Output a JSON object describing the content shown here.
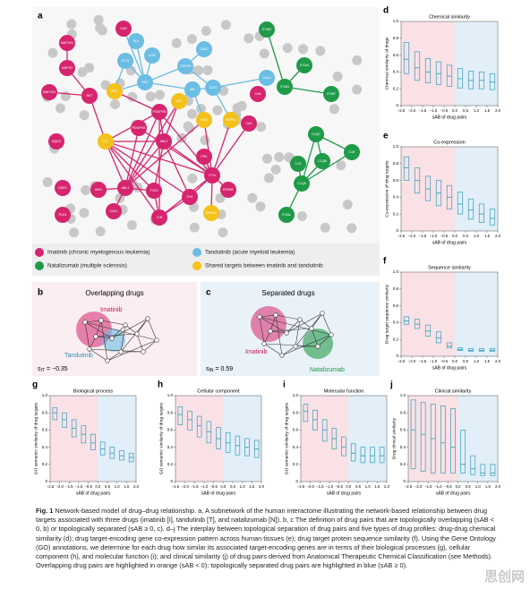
{
  "figure": {
    "panel_a": {
      "letter": "a",
      "groups": {
        "imatinib": {
          "label": "Imatinib (chronic myelogenous leukemia)",
          "color": "#d6246e"
        },
        "tandutinib": {
          "label": "Tandutinib (acute myeloid leukemia)",
          "color": "#6bbde3"
        },
        "natalizumab": {
          "label": "Natalizumab (multiple sclerosis)",
          "color": "#1f9a48"
        },
        "shared": {
          "label": "Shared targets between imatinib and tandutinib",
          "color": "#f4c21a"
        }
      },
      "nodes": [
        {
          "label": "CAR",
          "group": "imatinib"
        },
        {
          "label": "SLK",
          "group": "tandutinib"
        },
        {
          "label": "MAP2K1",
          "group": "imatinib"
        },
        {
          "label": "MAPK3",
          "group": "imatinib"
        },
        {
          "label": "MAP2K2",
          "group": "imatinib"
        },
        {
          "label": "BET",
          "group": "imatinib"
        },
        {
          "label": "FLT3",
          "group": "tandutinib"
        },
        {
          "label": "KDR",
          "group": "tandutinib"
        },
        {
          "label": "SRC",
          "group": "tandutinib"
        },
        {
          "label": "CSF1R",
          "group": "tandutinib"
        },
        {
          "label": "CDK2",
          "group": "tandutinib"
        },
        {
          "label": "ABL",
          "group": "tandutinib"
        },
        {
          "label": "CLK2",
          "group": "tandutinib"
        },
        {
          "label": "RET",
          "group": "shared"
        },
        {
          "label": "LCK",
          "group": "shared"
        },
        {
          "label": "PDGFRB",
          "group": "imatinib"
        },
        {
          "label": "PDGFRA",
          "group": "imatinib"
        },
        {
          "label": "HCK",
          "group": "shared"
        },
        {
          "label": "KIT",
          "group": "shared"
        },
        {
          "label": "NTRK1",
          "group": "shared"
        },
        {
          "label": "ABL2",
          "group": "imatinib"
        },
        {
          "label": "FRK",
          "group": "imatinib"
        },
        {
          "label": "FYN",
          "group": "imatinib"
        },
        {
          "label": "SYK",
          "group": "imatinib"
        },
        {
          "label": "LYN",
          "group": "imatinib"
        },
        {
          "label": "TYK2",
          "group": "imatinib"
        },
        {
          "label": "ABL1",
          "group": "imatinib"
        },
        {
          "label": "BMX",
          "group": "imatinib"
        },
        {
          "label": "DDR1",
          "group": "imatinib"
        },
        {
          "label": "NQO2",
          "group": "imatinib"
        },
        {
          "label": "CLK1",
          "group": "imatinib"
        },
        {
          "label": "PLK4",
          "group": "imatinib"
        },
        {
          "label": "EPHB2",
          "group": "imatinib"
        },
        {
          "label": "EPHA2",
          "group": "shared"
        },
        {
          "label": "CA8",
          "group": "imatinib"
        },
        {
          "label": "CA2",
          "group": "imatinib"
        },
        {
          "label": "ITGB3",
          "group": "natalizumab"
        },
        {
          "label": "ITGA4",
          "group": "natalizumab"
        },
        {
          "label": "ITGB1",
          "group": "natalizumab"
        },
        {
          "label": "ITGB7",
          "group": "natalizumab"
        },
        {
          "label": "C1QC",
          "group": "natalizumab"
        },
        {
          "label": "C1QB",
          "group": "natalizumab"
        },
        {
          "label": "C1R",
          "group": "natalizumab"
        },
        {
          "label": "C1S",
          "group": "natalizumab"
        },
        {
          "label": "C1QA",
          "group": "natalizumab"
        },
        {
          "label": "ITGAL",
          "group": "natalizumab"
        },
        {
          "label": "CA12",
          "group": "tandutinib"
        }
      ]
    },
    "panel_b": {
      "letter": "b",
      "title": "Overlapping drugs",
      "drug1": "Imatinib",
      "drug2": "Tandutinib",
      "s": "s",
      "sub": "IT",
      "value": "= −0.35"
    },
    "panel_c": {
      "letter": "c",
      "title": "Separated drugs",
      "drug1": "Imatinib",
      "drug2": "Natalizumab",
      "s": "s",
      "sub": "IN",
      "value": "= 0.59"
    },
    "box_axes": {
      "xlabel": "sAB of drug pairs",
      "xlim": [
        -2.5,
        2.0
      ],
      "xticks": [
        {
          "value": -2.5,
          "label": "−2.5"
        },
        {
          "value": -2.0,
          "label": "−2.0"
        },
        {
          "value": -1.5,
          "label": "−1.5"
        },
        {
          "value": -1.0,
          "label": "−1.0"
        },
        {
          "value": -0.5,
          "label": "−0.5"
        },
        {
          "value": 0,
          "label": "0.0"
        },
        {
          "value": 0.5,
          "label": "0.5"
        },
        {
          "value": 1.0,
          "label": "1.0"
        },
        {
          "value": 1.5,
          "label": "1.5"
        },
        {
          "value": 2.0,
          "label": "2.0"
        }
      ],
      "ylim": [
        0,
        1
      ],
      "yticks": [
        0,
        0.2,
        0.4,
        0.6,
        0.8,
        {
          "value": 1,
          "label": "1.0"
        }
      ],
      "box_x": [
        -2.25,
        -1.75,
        -1.25,
        -0.75,
        -0.25,
        0.25,
        0.75,
        1.25,
        1.75
      ],
      "overlap_color": "#f9e1e6",
      "separated_color": "#e2eef8",
      "box_color": "#4aa8c0"
    },
    "box_panels": [
      {
        "letter": "d",
        "title": "Chemical similarity",
        "ylabel": "Chemical similarity of drugs",
        "q1": [
          0.38,
          0.3,
          0.27,
          0.25,
          0.23,
          0.21,
          0.2,
          0.2,
          0.19
        ],
        "median": [
          0.55,
          0.45,
          0.4,
          0.38,
          0.35,
          0.32,
          0.3,
          0.3,
          0.28
        ],
        "q3": [
          0.75,
          0.64,
          0.56,
          0.52,
          0.48,
          0.44,
          0.41,
          0.4,
          0.38
        ]
      },
      {
        "letter": "e",
        "title": "Co-expression",
        "ylabel": "Co-expression of drug targets",
        "q1": [
          0.6,
          0.45,
          0.36,
          0.3,
          0.26,
          0.2,
          0.14,
          0.1,
          0.07
        ],
        "median": [
          0.75,
          0.6,
          0.5,
          0.45,
          0.4,
          0.32,
          0.25,
          0.2,
          0.15
        ],
        "q3": [
          0.88,
          0.75,
          0.65,
          0.6,
          0.54,
          0.46,
          0.38,
          0.32,
          0.26
        ]
      },
      {
        "letter": "f",
        "title": "Sequence similarity",
        "ylabel": "Drug target sequence similarity",
        "q1": [
          0.38,
          0.33,
          0.24,
          0.16,
          0.1,
          0.07,
          0.06,
          0.06,
          0.06
        ],
        "median": [
          0.42,
          0.38,
          0.3,
          0.22,
          0.12,
          0.08,
          0.07,
          0.07,
          0.07
        ],
        "q3": [
          0.47,
          0.44,
          0.37,
          0.29,
          0.16,
          0.1,
          0.09,
          0.09,
          0.09
        ]
      },
      {
        "letter": "g",
        "title": "Biological process",
        "ylabel": "GO semantic similarity of drug targets",
        "q1": [
          0.72,
          0.63,
          0.52,
          0.45,
          0.37,
          0.31,
          0.27,
          0.25,
          0.23
        ],
        "median": [
          0.8,
          0.72,
          0.62,
          0.55,
          0.45,
          0.38,
          0.33,
          0.3,
          0.28
        ],
        "q3": [
          0.86,
          0.8,
          0.72,
          0.65,
          0.55,
          0.46,
          0.4,
          0.36,
          0.33
        ]
      },
      {
        "letter": "h",
        "title": "Cellular component",
        "ylabel": "GO semantic similarity of drug targets",
        "q1": [
          0.66,
          0.6,
          0.52,
          0.45,
          0.38,
          0.34,
          0.31,
          0.3,
          0.28
        ],
        "median": [
          0.78,
          0.72,
          0.65,
          0.58,
          0.5,
          0.45,
          0.42,
          0.4,
          0.38
        ],
        "q3": [
          0.87,
          0.82,
          0.76,
          0.7,
          0.63,
          0.57,
          0.53,
          0.5,
          0.48
        ]
      },
      {
        "letter": "i",
        "title": "Molecular function",
        "ylabel": "GO semantic similarity of drug targets",
        "q1": [
          0.7,
          0.6,
          0.47,
          0.38,
          0.3,
          0.24,
          0.22,
          0.22,
          0.22
        ],
        "median": [
          0.82,
          0.72,
          0.6,
          0.5,
          0.4,
          0.33,
          0.3,
          0.3,
          0.3
        ],
        "q3": [
          0.9,
          0.83,
          0.72,
          0.62,
          0.52,
          0.44,
          0.4,
          0.4,
          0.4
        ]
      },
      {
        "letter": "j",
        "title": "Clinical similarity",
        "ylabel": "Drug clinical similarity",
        "q1": [
          0.15,
          0.12,
          0.1,
          0.1,
          0.1,
          0.1,
          0.08,
          0.07,
          0.07
        ],
        "median": [
          0.6,
          0.55,
          0.5,
          0.45,
          0.4,
          0.2,
          0.15,
          0.1,
          0.1
        ],
        "q3": [
          0.95,
          0.92,
          0.9,
          0.88,
          0.85,
          0.6,
          0.3,
          0.2,
          0.2
        ]
      }
    ],
    "caption": {
      "label": "Fig. 1",
      "text": "Network-based model of drug–drug relationship. a, A subnetwork of the human interactome illustrating the network-based relationship between drug targets associated with three drugs (imatinib [I], tandutinib [T], and natalizumab [N]). b, c The definition of drug pairs that are topologically overlapping (sAB < 0, b) or topologically separated (sAB ≥ 0, c). d–j The interplay between topological separation of drug pairs and five types of drug profiles: drug-drug chemical similarity (d); drug target-encoding gene co-expression pattern across human tissues (e); drug target protein sequence similarity (f). Using the Gene Ontology (GO) annotations, we determine for each drug how similar its associated target-encoding genes are in terms of their biological processes (g), cellular component (h), and molecular function (i); and clinical similarity (j) of drug pairs derived from Anatomical Therapeutic Chemical Classification (see Methods). Overlapping drug pairs are highlighted in orange (sAB < 0); topologically separated drug pairs are highlighted in blue (sAB ≥ 0)."
    },
    "watermark": "思创网"
  }
}
